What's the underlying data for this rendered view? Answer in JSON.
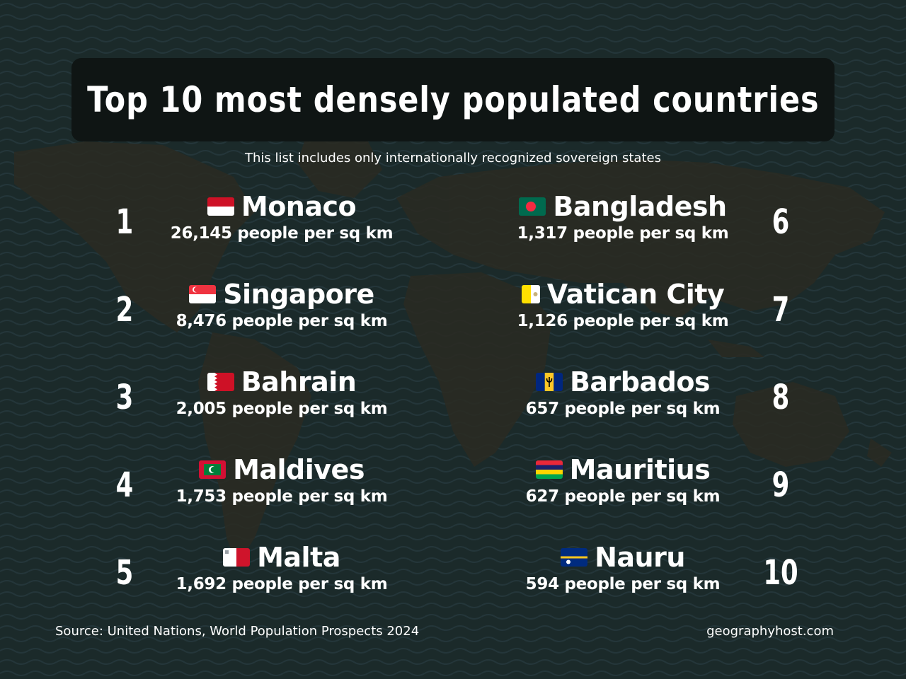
{
  "title": "Top 10 most densely populated countries",
  "subtitle": "This list includes only internationally recognized sovereign states",
  "countries": [
    {
      "rank": "1",
      "name": "Monaco",
      "density": "26,145 people per sq km",
      "flag_icon": "monaco-flag-icon"
    },
    {
      "rank": "2",
      "name": "Singapore",
      "density": "8,476 people per sq km",
      "flag_icon": "singapore-flag-icon"
    },
    {
      "rank": "3",
      "name": "Bahrain",
      "density": "2,005 people per sq km",
      "flag_icon": "bahrain-flag-icon"
    },
    {
      "rank": "4",
      "name": "Maldives",
      "density": "1,753 people per sq km",
      "flag_icon": "maldives-flag-icon"
    },
    {
      "rank": "5",
      "name": "Malta",
      "density": "1,692 people per sq km",
      "flag_icon": "malta-flag-icon"
    },
    {
      "rank": "6",
      "name": "Bangladesh",
      "density": "1,317 people per sq km",
      "flag_icon": "bangladesh-flag-icon"
    },
    {
      "rank": "7",
      "name": "Vatican City",
      "density": "1,126 people per sq km",
      "flag_icon": "vatican-city-flag-icon"
    },
    {
      "rank": "8",
      "name": "Barbados",
      "density": "657 people per sq km",
      "flag_icon": "barbados-flag-icon"
    },
    {
      "rank": "9",
      "name": "Mauritius",
      "density": "627 people per sq km",
      "flag_icon": "mauritius-flag-icon"
    },
    {
      "rank": "10",
      "name": "Nauru",
      "density": "594 people per sq km",
      "flag_icon": "nauru-flag-icon"
    }
  ],
  "footer": {
    "source": "Source: United Nations, World Population Prospects 2024",
    "site": "geographyhost.com"
  },
  "colors": {
    "background": "#1c2b2a",
    "title_box": "#0f1514",
    "text": "#ffffff"
  }
}
